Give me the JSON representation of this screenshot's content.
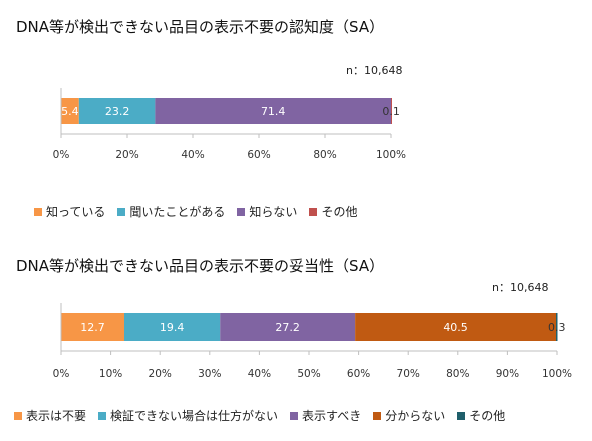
{
  "chart_data": [
    {
      "type": "bar",
      "orientation": "horizontal-stacked",
      "title": "DNA等が検出できない品目の表示不要の認知度（SA）",
      "n_label": "n：10,648",
      "xlim": [
        0,
        100
      ],
      "ticks": [
        "0%",
        "20%",
        "40%",
        "60%",
        "80%",
        "100%"
      ],
      "tick_values": [
        0,
        20,
        40,
        60,
        80,
        100
      ],
      "grid": false,
      "legend_position": "bottom",
      "series": [
        {
          "name": "知っている",
          "value": 5.4,
          "label": "5.4",
          "color": "#F79646",
          "label_color": "#ffffff"
        },
        {
          "name": "聞いたことがある",
          "value": 23.2,
          "label": "23.2",
          "color": "#4BACC6",
          "label_color": "#ffffff"
        },
        {
          "name": "知らない",
          "value": 71.4,
          "label": "71.4",
          "color": "#8064A2",
          "label_color": "#ffffff"
        },
        {
          "name": "その他",
          "value": 0.1,
          "label": "0.1",
          "color": "#C0504D",
          "label_color": "#333333"
        }
      ]
    },
    {
      "type": "bar",
      "orientation": "horizontal-stacked",
      "title": "DNA等が検出できない品目の表示不要の妥当性（SA）",
      "n_label": "n：10,648",
      "xlim": [
        0,
        100
      ],
      "ticks": [
        "0%",
        "10%",
        "20%",
        "30%",
        "40%",
        "50%",
        "60%",
        "70%",
        "80%",
        "90%",
        "100%"
      ],
      "tick_values": [
        0,
        10,
        20,
        30,
        40,
        50,
        60,
        70,
        80,
        90,
        100
      ],
      "grid": false,
      "legend_position": "bottom",
      "series": [
        {
          "name": "表示は不要",
          "value": 12.7,
          "label": "12.7",
          "color": "#F79646",
          "label_color": "#ffffff"
        },
        {
          "name": "検証できない場合は仕方がない",
          "value": 19.4,
          "label": "19.4",
          "color": "#4BACC6",
          "label_color": "#ffffff"
        },
        {
          "name": "表示すべき",
          "value": 27.2,
          "label": "27.2",
          "color": "#8064A2",
          "label_color": "#ffffff"
        },
        {
          "name": "分からない",
          "value": 40.5,
          "label": "40.5",
          "color": "#C05A12",
          "label_color": "#ffffff"
        },
        {
          "name": "その他",
          "value": 0.3,
          "label": "0.3",
          "color": "#1F5F6B",
          "label_color": "#333333"
        }
      ]
    }
  ]
}
